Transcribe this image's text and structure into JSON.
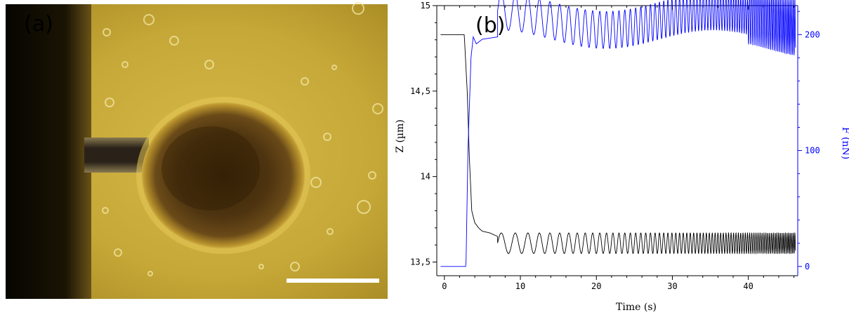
{
  "panel_a": {
    "label": "(a)"
  },
  "panel_b": {
    "label": "(b)"
  },
  "colors": {
    "z_series": "#000000",
    "f_series": "#0000ff",
    "micrograph_bg": "#c8a838",
    "micrograph_dark": "#050400"
  },
  "chart_data": {
    "type": "line",
    "title": "",
    "xlabel": "Time  (s)",
    "ylabel_left": "Z  (µm)",
    "ylabel_right": "F  (nN)",
    "xlim": [
      -1,
      46.5
    ],
    "ylim_left": [
      13.42,
      15.0
    ],
    "ylim_right": [
      -8,
      225
    ],
    "x_ticks": [
      0,
      10,
      20,
      30,
      40
    ],
    "y_left_ticks": [
      {
        "value": 13.5,
        "label": "13,5"
      },
      {
        "value": 14.0,
        "label": "14"
      },
      {
        "value": 14.5,
        "label": "14,5"
      },
      {
        "value": 15.0,
        "label": "15"
      }
    ],
    "y_right_ticks": [
      {
        "value": 0,
        "label": "0"
      },
      {
        "value": 100,
        "label": "100"
      },
      {
        "value": 200,
        "label": "200"
      }
    ],
    "grid": false,
    "series": [
      {
        "axis": "left",
        "color": "#000000",
        "segments": [
          {
            "kind": "line",
            "x": [
              -0.5,
              2.6,
              2.65,
              3.0,
              3.3,
              3.6,
              4.0,
              4.5,
              5.0,
              6.0,
              7.0
            ],
            "y": [
              14.83,
              14.83,
              14.8,
              14.5,
              14.1,
              13.8,
              13.73,
              13.7,
              13.68,
              13.67,
              13.65
            ]
          },
          {
            "kind": "oscillation",
            "t0": 7.0,
            "t1": 46.2,
            "center": 13.61,
            "amplitude": 0.06,
            "freq_start": 0.5,
            "freq_end": 5.0
          }
        ]
      },
      {
        "axis": "right",
        "color": "#0000ff",
        "segments": [
          {
            "kind": "line",
            "x": [
              -0.5,
              2.8,
              2.85,
              3.1,
              3.5,
              3.8,
              4.2,
              5.0,
              6.0,
              7.0
            ],
            "y": [
              0,
              0,
              5,
              100,
              180,
              198,
              192,
              196,
              197,
              198
            ]
          },
          {
            "kind": "oscillation",
            "t0": 7.0,
            "t1": 46.2,
            "center": 212,
            "amplitude": 16,
            "freq_start": 0.5,
            "freq_end": 5.0,
            "amp_growth_after": 40,
            "amp_late": 24
          }
        ]
      }
    ]
  }
}
